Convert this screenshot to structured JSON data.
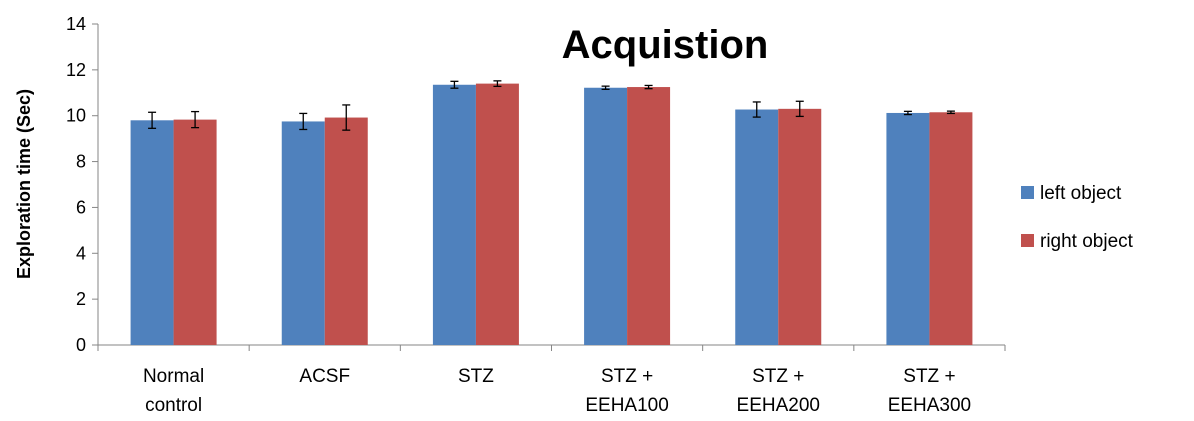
{
  "chart_data": {
    "type": "bar",
    "title": "Acquistion",
    "xlabel": "",
    "ylabel": "Exploration time (Sec)",
    "ylim": [
      0,
      14
    ],
    "yticks": [
      0,
      2,
      4,
      6,
      8,
      10,
      12,
      14
    ],
    "grid": false,
    "legend_position": "right",
    "categories": [
      [
        "Normal",
        "control"
      ],
      [
        "ACSF"
      ],
      [
        "STZ"
      ],
      [
        "STZ +",
        "EEHA100"
      ],
      [
        "STZ +",
        "EEHA200"
      ],
      [
        "STZ +",
        "EEHA300"
      ]
    ],
    "series": [
      {
        "name": "left object",
        "color": "#4F81BD",
        "values": [
          9.8,
          9.75,
          11.35,
          11.22,
          10.27,
          10.12
        ],
        "errors": [
          0.35,
          0.35,
          0.15,
          0.07,
          0.33,
          0.07
        ]
      },
      {
        "name": "right object",
        "color": "#C0504D",
        "values": [
          9.83,
          9.92,
          11.4,
          11.25,
          10.3,
          10.15
        ],
        "errors": [
          0.35,
          0.55,
          0.12,
          0.07,
          0.33,
          0.05
        ]
      }
    ]
  }
}
